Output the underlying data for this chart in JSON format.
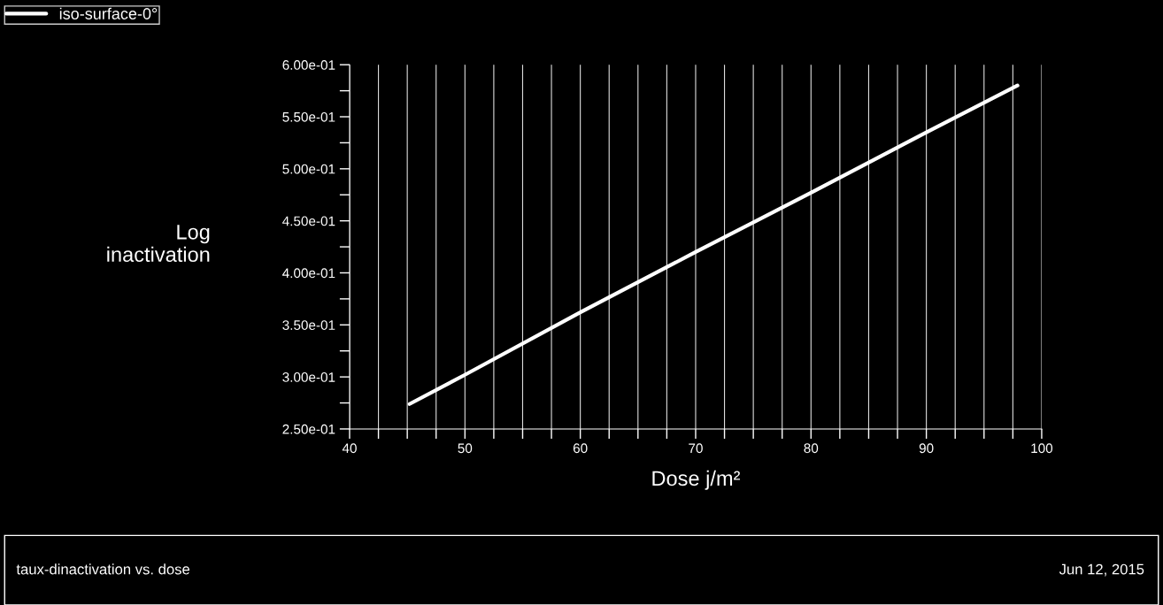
{
  "chart_data": {
    "type": "line",
    "xlabel": "Dose j/m²",
    "ylabel": "Log\ninactivation",
    "x": [
      45.2,
      50,
      60,
      70,
      80,
      90,
      97.9
    ],
    "series": [
      {
        "name": "iso-surface-0°",
        "color": "#ffffff",
        "values": [
          0.274,
          0.302,
          0.362,
          0.42,
          0.477,
          0.535,
          0.58
        ]
      }
    ],
    "xlim": [
      40,
      100
    ],
    "xticks": [
      40,
      {
        "value": 42.5,
        "label": null
      },
      {
        "value": 45,
        "label": null
      },
      {
        "value": 47.5,
        "label": null
      },
      50,
      {
        "value": 52.5,
        "label": null
      },
      {
        "value": 55,
        "label": null
      },
      {
        "value": 57.5,
        "label": null
      },
      60,
      {
        "value": 62.5,
        "label": null
      },
      {
        "value": 65,
        "label": null
      },
      {
        "value": 67.5,
        "label": null
      },
      70,
      {
        "value": 72.5,
        "label": null
      },
      {
        "value": 75,
        "label": null
      },
      {
        "value": 77.5,
        "label": null
      },
      80,
      {
        "value": 82.5,
        "label": null
      },
      {
        "value": 85,
        "label": null
      },
      {
        "value": 87.5,
        "label": null
      },
      90,
      {
        "value": 92.5,
        "label": null
      },
      {
        "value": 95,
        "label": null
      },
      {
        "value": 97.5,
        "label": null
      },
      100
    ],
    "ylim": [
      0.25,
      0.6
    ],
    "yticks": [
      {
        "value": 0.25,
        "label": "2.50e-01"
      },
      {
        "value": 0.275,
        "label": null
      },
      {
        "value": 0.3,
        "label": "3.00e-01"
      },
      {
        "value": 0.325,
        "label": null
      },
      {
        "value": 0.35,
        "label": "3.50e-01"
      },
      {
        "value": 0.375,
        "label": null
      },
      {
        "value": 0.4,
        "label": "4.00e-01"
      },
      {
        "value": 0.425,
        "label": null
      },
      {
        "value": 0.45,
        "label": "4.50e-01"
      },
      {
        "value": 0.475,
        "label": null
      },
      {
        "value": 0.5,
        "label": "5.00e-01"
      },
      {
        "value": 0.525,
        "label": null
      },
      {
        "value": 0.55,
        "label": "5.50e-01"
      },
      {
        "value": 0.575,
        "label": null
      },
      {
        "value": 0.6,
        "label": "6.00e-01"
      }
    ],
    "grid": "x",
    "legend": "top left",
    "line_style": "solid",
    "marker": "none",
    "annotations": [
      "taux-dinactivation vs. dose",
      "Jun 12, 2015"
    ]
  }
}
